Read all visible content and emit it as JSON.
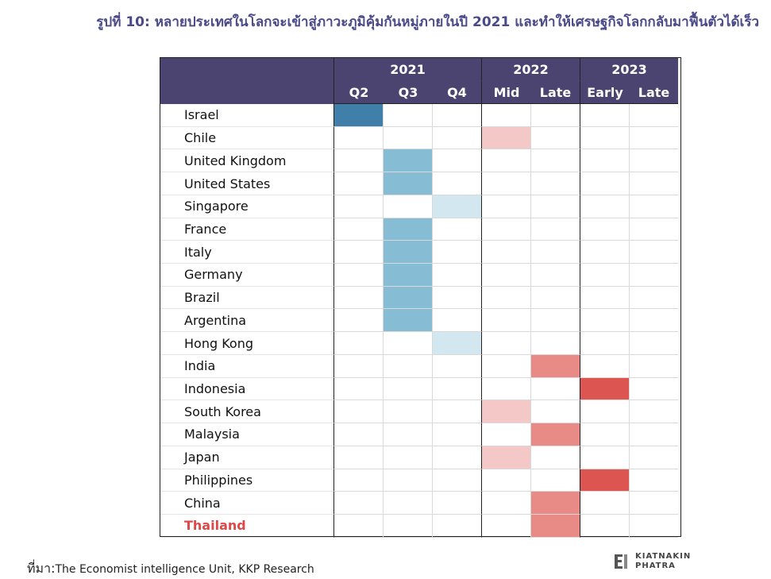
{
  "title": "รูปที่ 10: หลายประเทศในโลกจะเข้าสู่ภาวะภูมิคุ้มกันหมู่ภายในปี 2021  และทำให้เศรษฐกิจโลกกลับมาฟื้นตัวได้เร็ว",
  "source": {
    "prefix": "ที่มา:",
    "text": "The Economist intelligence Unit,  KKP Research"
  },
  "logo": {
    "line1": "KIATNAKIN",
    "line2": "PHATRA"
  },
  "chart_data": {
    "type": "table",
    "years": [
      {
        "label": "2021",
        "span": 3
      },
      {
        "label": "2022",
        "span": 2
      },
      {
        "label": "2023",
        "span": 2
      }
    ],
    "periods": [
      "Q2",
      "Q3",
      "Q4",
      "Mid",
      "Late",
      "Early",
      "Late"
    ],
    "levels": {
      "1": "#3f7fa9",
      "2": "#86bcd4",
      "3": "#d3e7f0",
      "4": "#f3c8c6",
      "5": "#e88a85",
      "6": "#dc5550"
    },
    "highlight_color": "#e04848",
    "rows": [
      {
        "country": "Israel",
        "period_index": 0,
        "level": 1
      },
      {
        "country": "Chile",
        "period_index": 3,
        "level": 4
      },
      {
        "country": "United Kingdom",
        "period_index": 1,
        "level": 2
      },
      {
        "country": "United States",
        "period_index": 1,
        "level": 2
      },
      {
        "country": "Singapore",
        "period_index": 2,
        "level": 3
      },
      {
        "country": "France",
        "period_index": 1,
        "level": 2
      },
      {
        "country": "Italy",
        "period_index": 1,
        "level": 2
      },
      {
        "country": "Germany",
        "period_index": 1,
        "level": 2
      },
      {
        "country": "Brazil",
        "period_index": 1,
        "level": 2
      },
      {
        "country": "Argentina",
        "period_index": 1,
        "level": 2
      },
      {
        "country": "Hong Kong",
        "period_index": 2,
        "level": 3
      },
      {
        "country": "India",
        "period_index": 4,
        "level": 5
      },
      {
        "country": "Indonesia",
        "period_index": 5,
        "level": 6
      },
      {
        "country": "South Korea",
        "period_index": 3,
        "level": 4
      },
      {
        "country": "Malaysia",
        "period_index": 4,
        "level": 5
      },
      {
        "country": "Japan",
        "period_index": 3,
        "level": 4
      },
      {
        "country": "Philippines",
        "period_index": 5,
        "level": 6
      },
      {
        "country": "China",
        "period_index": 4,
        "level": 5
      },
      {
        "country": "Thailand",
        "period_index": 4,
        "level": 5,
        "highlight": true
      }
    ]
  }
}
